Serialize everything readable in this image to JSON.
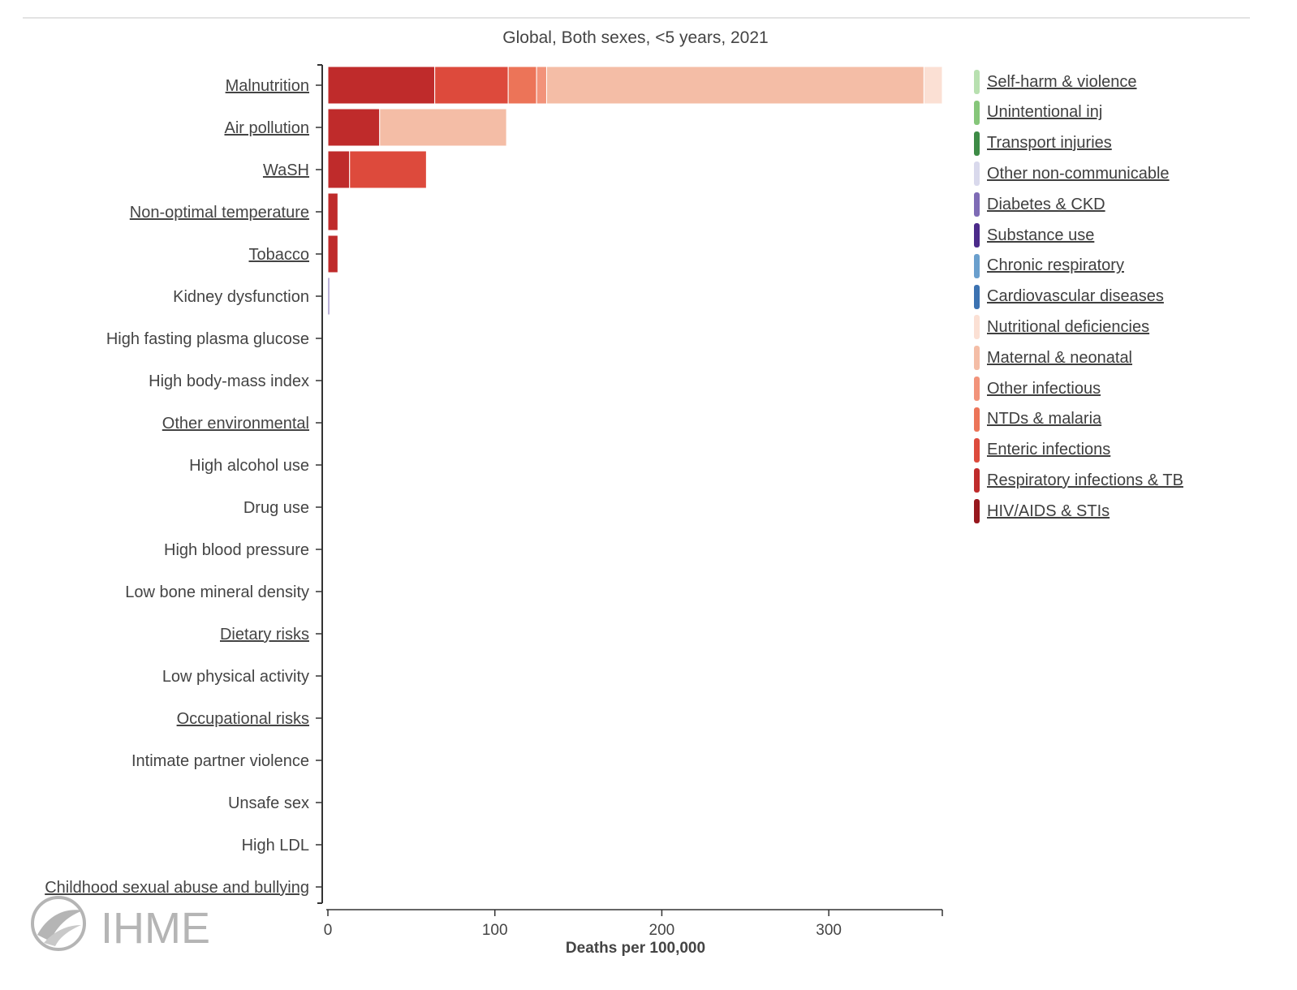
{
  "chart_data": {
    "type": "bar",
    "orientation": "horizontal",
    "stacked": true,
    "title": "Global, Both sexes, <5 years, 2021",
    "xlabel": "Deaths per 100,000",
    "ylabel": "",
    "xlim": [
      0,
      368
    ],
    "xticks": [
      "0",
      "100",
      "200",
      "300"
    ],
    "xtick_values": [
      0,
      100,
      200,
      300
    ],
    "grid": false,
    "legend_position": "right",
    "categories": [
      {
        "label": "Malnutrition",
        "link": true
      },
      {
        "label": "Air pollution",
        "link": true
      },
      {
        "label": "WaSH",
        "link": true
      },
      {
        "label": "Non-optimal temperature",
        "link": true
      },
      {
        "label": "Tobacco",
        "link": true
      },
      {
        "label": "Kidney dysfunction",
        "link": false
      },
      {
        "label": "High fasting plasma glucose",
        "link": false
      },
      {
        "label": "High body-mass index",
        "link": false
      },
      {
        "label": "Other environmental",
        "link": true
      },
      {
        "label": "High alcohol use",
        "link": false
      },
      {
        "label": "Drug use",
        "link": false
      },
      {
        "label": "High blood pressure",
        "link": false
      },
      {
        "label": "Low bone mineral density",
        "link": false
      },
      {
        "label": "Dietary risks",
        "link": true
      },
      {
        "label": "Low physical activity",
        "link": false
      },
      {
        "label": "Occupational risks",
        "link": true
      },
      {
        "label": "Intimate partner violence",
        "link": false
      },
      {
        "label": "Unsafe sex",
        "link": false
      },
      {
        "label": "High LDL",
        "link": false
      },
      {
        "label": "Childhood sexual abuse and bullying",
        "link": true
      }
    ],
    "series": [
      {
        "name": "Self-harm & violence",
        "color": "#b8e0b0",
        "values": [
          0,
          0,
          0,
          0,
          0,
          0,
          0,
          0,
          0,
          0,
          0,
          0,
          0,
          0,
          0,
          0,
          0,
          0,
          0,
          0
        ]
      },
      {
        "name": "Unintentional inj",
        "color": "#86c67a",
        "values": [
          0,
          0,
          0,
          0,
          0,
          0,
          0,
          0,
          0,
          0,
          0,
          0,
          0,
          0,
          0,
          0,
          0,
          0,
          0,
          0
        ]
      },
      {
        "name": "Transport injuries",
        "color": "#3d8b46",
        "values": [
          0,
          0,
          0,
          0,
          0,
          0,
          0,
          0,
          0,
          0,
          0,
          0,
          0,
          0,
          0,
          0,
          0,
          0,
          0,
          0
        ]
      },
      {
        "name": "Other non-communicable",
        "color": "#d9d9ec",
        "values": [
          0,
          0,
          0,
          0,
          0,
          0,
          0,
          0,
          0,
          0,
          0,
          0,
          0,
          0,
          0,
          0,
          0,
          0,
          0,
          0
        ]
      },
      {
        "name": "Diabetes & CKD",
        "color": "#7e6bb5",
        "values": [
          0,
          0,
          0,
          0,
          0,
          1,
          0,
          0,
          0,
          0,
          0,
          0,
          0,
          0,
          0,
          0,
          0,
          0,
          0,
          0
        ]
      },
      {
        "name": "Substance use",
        "color": "#4b2a8a",
        "values": [
          0,
          0,
          0,
          0,
          0,
          0,
          0,
          0,
          0,
          0,
          0,
          0,
          0,
          0,
          0,
          0,
          0,
          0,
          0,
          0
        ]
      },
      {
        "name": "Chronic respiratory",
        "color": "#6a9fcd",
        "values": [
          0,
          0,
          0,
          0,
          0,
          0,
          0,
          0,
          0,
          0,
          0,
          0,
          0,
          0,
          0,
          0,
          0,
          0,
          0,
          0
        ]
      },
      {
        "name": "Cardiovascular diseases",
        "color": "#3c72b1",
        "values": [
          0,
          0,
          0,
          0,
          0,
          0,
          0,
          0,
          0,
          0,
          0,
          0,
          0,
          0,
          0,
          0,
          0,
          0,
          0,
          0
        ]
      },
      {
        "name": "HIV/AIDS & STIs",
        "color": "#97171d",
        "values": [
          0,
          0,
          0,
          0,
          0,
          0,
          0,
          0,
          0,
          0,
          0,
          0,
          0,
          0,
          0,
          0,
          0,
          0,
          0,
          0
        ]
      },
      {
        "name": "Respiratory infections & TB",
        "color": "#bf2b2b",
        "values": [
          64,
          31,
          13,
          6,
          6,
          0,
          0,
          0,
          0,
          0,
          0,
          0,
          0,
          0,
          0,
          0,
          0,
          0,
          0,
          0
        ]
      },
      {
        "name": "Enteric infections",
        "color": "#dd4a3c",
        "values": [
          44,
          0,
          46,
          0,
          0,
          0,
          0,
          0,
          0,
          0,
          0,
          0,
          0,
          0,
          0,
          0,
          0,
          0,
          0,
          0
        ]
      },
      {
        "name": "NTDs & malaria",
        "color": "#ec7458",
        "values": [
          17,
          0,
          0,
          0,
          0,
          0,
          0,
          0,
          0,
          0,
          0,
          0,
          0,
          0,
          0,
          0,
          0,
          0,
          0,
          0
        ]
      },
      {
        "name": "Other infectious",
        "color": "#f2937a",
        "values": [
          6,
          0,
          0,
          0,
          0,
          0,
          0,
          0,
          0,
          0,
          0,
          0,
          0,
          0,
          0,
          0,
          0,
          0,
          0,
          0
        ]
      },
      {
        "name": "Maternal & neonatal",
        "color": "#f4bda6",
        "values": [
          226,
          76,
          0,
          0,
          0,
          0,
          0,
          0,
          0,
          0,
          0,
          0,
          0,
          0,
          0,
          0,
          0,
          0,
          0,
          0
        ]
      },
      {
        "name": "Nutritional deficiencies",
        "color": "#fbe0d4",
        "values": [
          11,
          0,
          0,
          0,
          0,
          0,
          0,
          0,
          0,
          0,
          0,
          0,
          0,
          0,
          0,
          0,
          0,
          0,
          0,
          0
        ]
      }
    ],
    "legend_order": [
      "Self-harm & violence",
      "Unintentional inj",
      "Transport injuries",
      "Other non-communicable",
      "Diabetes & CKD",
      "Substance use",
      "Chronic respiratory",
      "Cardiovascular diseases",
      "Nutritional deficiencies",
      "Maternal & neonatal",
      "Other infectious",
      "NTDs & malaria",
      "Enteric infections",
      "Respiratory infections & TB",
      "HIV/AIDS & STIs"
    ]
  },
  "logo": {
    "text": "IHME",
    "icon": "ihme-leaf-logo",
    "color": "#b5b5b5"
  }
}
